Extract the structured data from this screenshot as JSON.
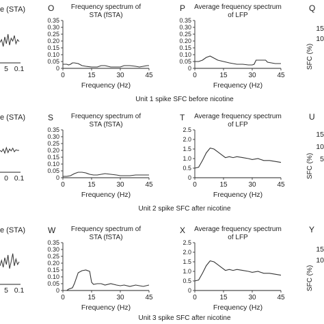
{
  "rows": [
    {
      "caption": "Unit 1 spike SFC before nicotine",
      "partial_left": {
        "title": "e (STA)",
        "ticks": [
          "5",
          "0.1"
        ]
      },
      "partial_right": {
        "letter": "Q",
        "ticks": [
          "15",
          "10"
        ],
        "ylabel": "SFC (%)"
      }
    },
    {
      "caption": "Unit 2 spike SFC after nicotine",
      "partial_left": {
        "title": "e (STA)",
        "ticks": [
          "0",
          "0.1"
        ]
      },
      "partial_right": {
        "letter": "U",
        "ticks": [
          "15",
          "10",
          "5"
        ],
        "ylabel": "SFC (%)"
      }
    },
    {
      "caption": "Unit 3 spike SFC after nicotine",
      "partial_left": {
        "title": "e (STA)",
        "ticks": [
          "5",
          "0.1"
        ]
      },
      "partial_right": {
        "letter": "Y",
        "ticks": [
          "15",
          "10"
        ],
        "ylabel": "SFC (%)"
      }
    }
  ],
  "chart_data": [
    {
      "id": "O",
      "type": "line",
      "title": [
        "Frequency spectrum of",
        "STA (fSTA)"
      ],
      "xlabel": "Frequency (Hz)",
      "ylabel": "",
      "xlim": [
        0,
        45
      ],
      "ylim": [
        0,
        0.35
      ],
      "xticks": [
        "0",
        "15",
        "30",
        "45"
      ],
      "yticks": [
        "0",
        "0.05",
        "0.10",
        "0.15",
        "0.20",
        "0.25",
        "0.30",
        "0.35"
      ],
      "x": [
        0,
        2,
        3,
        4,
        5,
        6,
        8,
        10,
        12,
        15,
        18,
        20,
        22,
        25,
        28,
        30,
        32,
        35,
        38,
        40,
        42,
        44,
        45
      ],
      "y": [
        0.03,
        0.03,
        0.025,
        0.03,
        0.04,
        0.04,
        0.035,
        0.02,
        0.015,
        0.01,
        0.01,
        0.02,
        0.02,
        0.01,
        0.01,
        0.01,
        0.02,
        0.02,
        0.015,
        0.01,
        0.015,
        0.02,
        0.02
      ]
    },
    {
      "id": "P",
      "type": "line",
      "title": [
        "Average frequency spectrum",
        "of LFP"
      ],
      "xlabel": "Frequency (Hz)",
      "ylabel": "",
      "xlim": [
        0,
        45
      ],
      "ylim": [
        0,
        0.35
      ],
      "xticks": [
        "0",
        "15",
        "30",
        "45"
      ],
      "yticks": [
        "0",
        "0.05",
        "0.10",
        "0.15",
        "0.20",
        "0.25",
        "0.30",
        "0.35"
      ],
      "x": [
        0,
        2,
        4,
        6,
        8,
        10,
        12,
        15,
        18,
        20,
        22,
        25,
        28,
        30,
        31,
        32,
        35,
        37,
        38,
        40,
        42,
        45
      ],
      "y": [
        0.05,
        0.05,
        0.06,
        0.08,
        0.09,
        0.075,
        0.06,
        0.05,
        0.04,
        0.035,
        0.03,
        0.03,
        0.025,
        0.025,
        0.03,
        0.06,
        0.06,
        0.06,
        0.045,
        0.04,
        0.035,
        0.035
      ]
    },
    {
      "id": "S",
      "type": "line",
      "title": [
        "Frequency spectrum of",
        "STA (fSTA)"
      ],
      "xlabel": "Frequency (Hz)",
      "ylabel": "",
      "xlim": [
        0,
        45
      ],
      "ylim": [
        0,
        0.35
      ],
      "xticks": [
        "0",
        "15",
        "30",
        "45"
      ],
      "yticks": [
        "0",
        "0.05",
        "0.10",
        "0.15",
        "0.20",
        "0.25",
        "0.30",
        "0.35"
      ],
      "x": [
        0,
        2,
        4,
        6,
        8,
        10,
        12,
        14,
        16,
        18,
        20,
        22,
        25,
        28,
        30,
        32,
        35,
        38,
        40,
        42,
        45
      ],
      "y": [
        0.01,
        0.01,
        0.015,
        0.03,
        0.04,
        0.04,
        0.035,
        0.025,
        0.02,
        0.02,
        0.025,
        0.03,
        0.025,
        0.02,
        0.015,
        0.015,
        0.015,
        0.02,
        0.02,
        0.02,
        0.02
      ]
    },
    {
      "id": "T",
      "type": "line",
      "title": [
        "Average frequency spectrum",
        "of LFP"
      ],
      "xlabel": "Frequency (Hz)",
      "ylabel": "",
      "xlim": [
        0,
        45
      ],
      "ylim": [
        0,
        2.5
      ],
      "xticks": [
        "0",
        "15",
        "30",
        "45"
      ],
      "yticks": [
        "0",
        "0.5",
        "1.0",
        "1.5",
        "2.0",
        "2.5"
      ],
      "x": [
        0,
        2,
        4,
        6,
        8,
        10,
        12,
        14,
        16,
        18,
        20,
        22,
        25,
        28,
        30,
        33,
        36,
        39,
        42,
        45
      ],
      "y": [
        0.5,
        0.55,
        0.9,
        1.3,
        1.55,
        1.5,
        1.35,
        1.2,
        1.05,
        1.1,
        1.05,
        1.1,
        1.05,
        1.0,
        0.95,
        1.0,
        0.9,
        0.9,
        0.85,
        0.8
      ]
    },
    {
      "id": "W",
      "type": "line",
      "title": [
        "Frequency spectrum of",
        "STA (fSTA)"
      ],
      "xlabel": "Frequency (Hz)",
      "ylabel": "",
      "xlim": [
        0,
        45
      ],
      "ylim": [
        0,
        0.35
      ],
      "xticks": [
        "0",
        "15",
        "30",
        "45"
      ],
      "yticks": [
        "0",
        "0.05",
        "0.10",
        "0.15",
        "0.20",
        "0.25",
        "0.30",
        "0.35"
      ],
      "x": [
        0,
        2,
        3,
        5,
        6,
        8,
        10,
        12,
        14,
        15,
        16,
        18,
        20,
        22,
        25,
        28,
        30,
        32,
        35,
        38,
        40,
        42,
        45
      ],
      "y": [
        0.0,
        0.0,
        0.01,
        0.02,
        0.05,
        0.13,
        0.145,
        0.15,
        0.14,
        0.06,
        0.045,
        0.05,
        0.05,
        0.04,
        0.05,
        0.04,
        0.035,
        0.04,
        0.03,
        0.04,
        0.035,
        0.03,
        0.04
      ]
    },
    {
      "id": "X",
      "type": "line",
      "title": [
        "Average frequency spectrum",
        "of LFP"
      ],
      "xlabel": "Frequency (Hz)",
      "ylabel": "",
      "xlim": [
        0,
        45
      ],
      "ylim": [
        0,
        2.5
      ],
      "xticks": [
        "0",
        "15",
        "30",
        "45"
      ],
      "yticks": [
        "0",
        "0.5",
        "1.0",
        "1.5",
        "2.0",
        "2.5"
      ],
      "x": [
        0,
        2,
        4,
        6,
        8,
        10,
        12,
        14,
        16,
        18,
        20,
        22,
        25,
        28,
        30,
        33,
        36,
        39,
        42,
        45
      ],
      "y": [
        0.5,
        0.55,
        0.9,
        1.3,
        1.55,
        1.5,
        1.35,
        1.2,
        1.05,
        1.1,
        1.05,
        1.1,
        1.05,
        1.0,
        0.95,
        1.0,
        0.9,
        0.9,
        0.85,
        0.8
      ]
    }
  ],
  "partial_traces": [
    [
      0.45,
      0.55,
      0.3,
      0.65,
      0.4,
      0.75,
      0.35,
      0.6,
      0.5,
      0.7,
      0.4,
      0.55,
      0.48
    ],
    [
      0.5,
      0.45,
      0.55,
      0.4,
      0.6,
      0.42,
      0.55,
      0.48,
      0.58,
      0.45,
      0.52,
      0.5,
      0.5
    ],
    [
      0.4,
      0.6,
      0.35,
      0.7,
      0.45,
      0.8,
      0.3,
      0.55,
      0.85,
      0.4,
      0.65,
      0.45,
      0.55
    ]
  ]
}
